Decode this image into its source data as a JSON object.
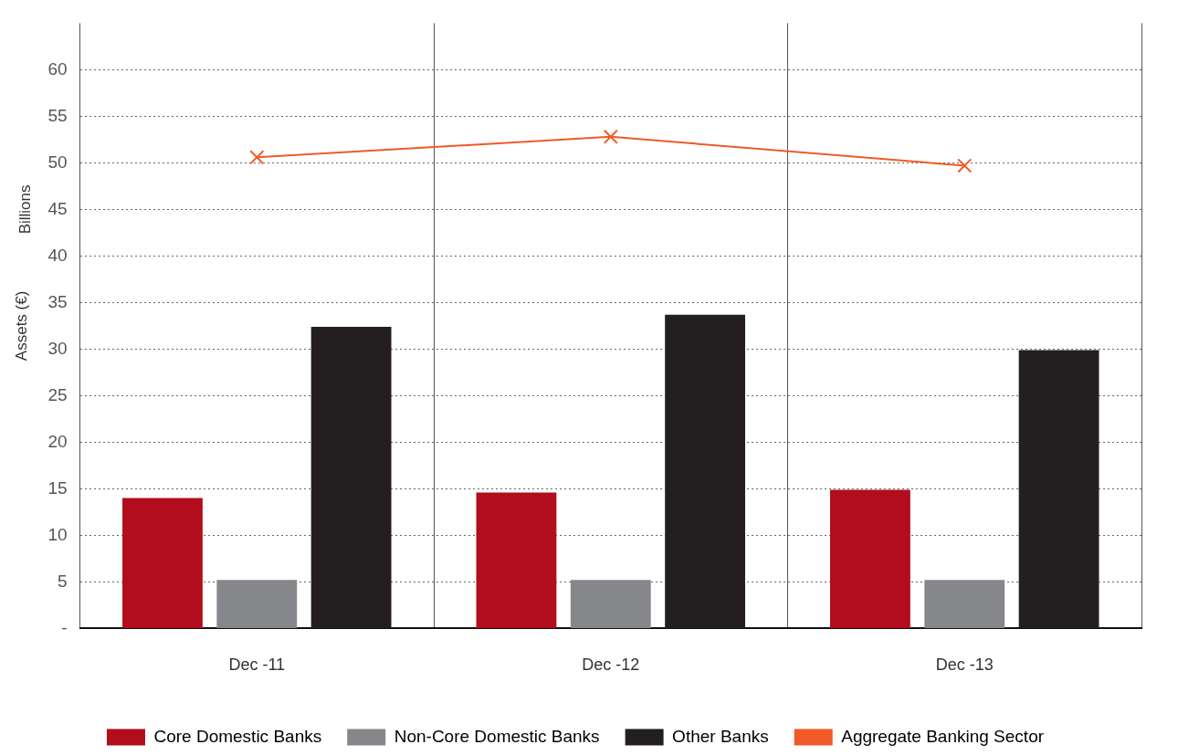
{
  "chart_data": {
    "type": "bar",
    "ylabel": "Assets (€)",
    "annotations": [
      "Billions"
    ],
    "categories": [
      "Dec -11",
      "Dec -12",
      "Dec -13"
    ],
    "series": [
      {
        "name": "Core Domestic Banks",
        "color": "#b10d1c",
        "values": [
          14.0,
          14.6,
          14.9
        ]
      },
      {
        "name": "Non-Core Domestic Banks",
        "color": "#86878a",
        "values": [
          5.2,
          5.2,
          5.2
        ]
      },
      {
        "name": "Other Banks",
        "color": "#231f20",
        "values": [
          32.4,
          33.7,
          29.9
        ]
      },
      {
        "name": "Aggregate Banking Sector",
        "type": "line",
        "color": "#f05a28",
        "values": [
          50.6,
          52.8,
          49.7
        ]
      }
    ],
    "ylim": [
      0,
      65
    ],
    "yticks": [
      {
        "value": 0,
        "label": "-"
      },
      5,
      10,
      15,
      20,
      25,
      30,
      35,
      40,
      45,
      50,
      55,
      60
    ],
    "grid": true,
    "legend": "bottom",
    "marker": "cross",
    "line_style": "solid"
  }
}
